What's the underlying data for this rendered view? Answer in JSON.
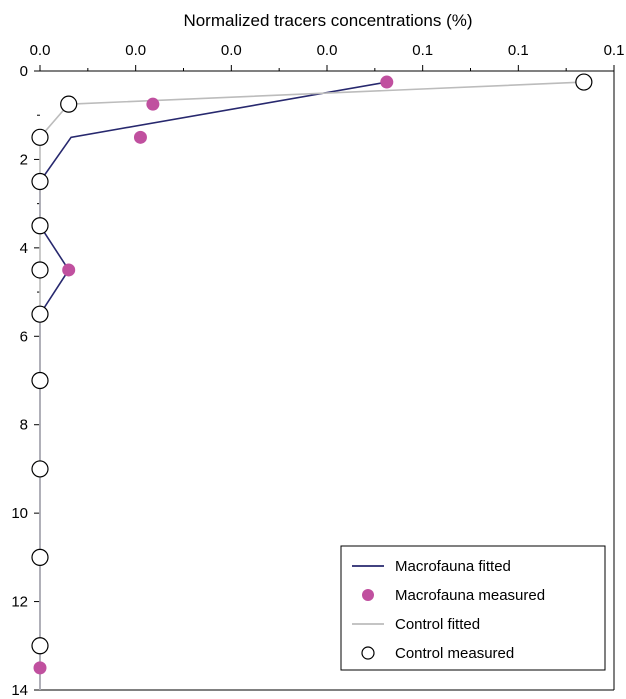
{
  "chart_data": {
    "type": "line",
    "title": "",
    "xlabel": "Normalized tracers concentrations (%)",
    "ylabel": "",
    "x_axis_position": "top",
    "y_axis_inverted": true,
    "x_tick_labels": [
      "0.0",
      "0.0",
      "0.0",
      "0.0",
      "0.1",
      "0.1",
      "0.1"
    ],
    "y_ticks": [
      0,
      2,
      4,
      6,
      8,
      10,
      12,
      14
    ],
    "y_tick_labels": [
      "0",
      "2",
      "4",
      "6",
      "8",
      "10",
      "12",
      "14"
    ],
    "xlim": [
      0,
      0.12
    ],
    "ylim": [
      14,
      0
    ],
    "grid": false,
    "legend_position": "bottom-right",
    "series": [
      {
        "name": "Macrofauna fitted",
        "kind": "line",
        "color": "#27286e",
        "points": [
          [
            0.0725,
            0.25
          ],
          [
            0.0065,
            1.5
          ],
          [
            0.0,
            2.5
          ],
          [
            0.0,
            3.5
          ],
          [
            0.006,
            4.5
          ],
          [
            0.0,
            5.5
          ],
          [
            0.0,
            7.0
          ],
          [
            0.0,
            9.0
          ],
          [
            0.0,
            11.0
          ],
          [
            0.0,
            13.0
          ],
          [
            0.0,
            14.0
          ]
        ]
      },
      {
        "name": "Macrofauna measured",
        "kind": "marker-filled",
        "color": "#c0509f",
        "points": [
          [
            0.0725,
            0.25
          ],
          [
            0.0236,
            0.75
          ],
          [
            0.021,
            1.5
          ],
          [
            0.006,
            4.5
          ],
          [
            0.0,
            13.5
          ]
        ]
      },
      {
        "name": "Control fitted",
        "kind": "line",
        "color": "#bcbcbc",
        "points": [
          [
            0.1137,
            0.25
          ],
          [
            0.006,
            0.75
          ],
          [
            0.0,
            1.5
          ],
          [
            0.0,
            2.5
          ],
          [
            0.0,
            3.5
          ],
          [
            0.0,
            4.5
          ],
          [
            0.0,
            5.5
          ],
          [
            0.0,
            7.0
          ],
          [
            0.0,
            9.0
          ],
          [
            0.0,
            11.0
          ],
          [
            0.0,
            13.0
          ],
          [
            0.0,
            14.0
          ]
        ]
      },
      {
        "name": "Control measured",
        "kind": "marker-open",
        "color": "#000000",
        "points": [
          [
            0.1137,
            0.25
          ],
          [
            0.006,
            0.75
          ],
          [
            0.0,
            1.5
          ],
          [
            0.0,
            2.5
          ],
          [
            0.0,
            3.5
          ],
          [
            0.0,
            4.5
          ],
          [
            0.0,
            5.5
          ],
          [
            0.0,
            7.0
          ],
          [
            0.0,
            9.0
          ],
          [
            0.0,
            11.0
          ],
          [
            0.0,
            13.0
          ]
        ]
      }
    ]
  }
}
